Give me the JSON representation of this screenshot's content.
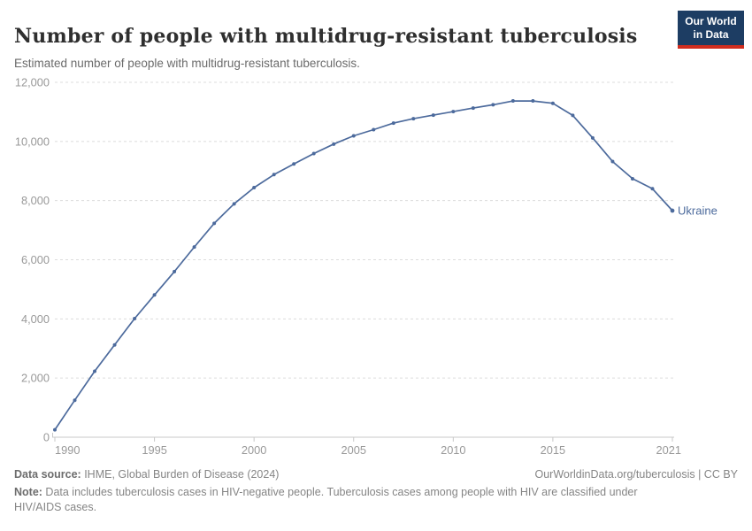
{
  "header": {
    "title": "Number of people with multidrug-resistant tuberculosis",
    "subtitle": "Estimated number of people with multidrug-resistant tuberculosis.",
    "logo_line1": "Our World",
    "logo_line2": "in Data",
    "logo_bg": "#1d3d63",
    "logo_bar": "#d12d1e"
  },
  "chart_data": {
    "type": "line",
    "title": "Number of people with multidrug-resistant tuberculosis",
    "entity": "Ukraine",
    "end_label": "Ukraine",
    "x": [
      1990,
      1991,
      1992,
      1993,
      1994,
      1995,
      1996,
      1997,
      1998,
      1999,
      2000,
      2001,
      2002,
      2003,
      2004,
      2005,
      2006,
      2007,
      2008,
      2009,
      2010,
      2011,
      2012,
      2013,
      2014,
      2015,
      2016,
      2017,
      2018,
      2019,
      2020,
      2021
    ],
    "values": [
      250,
      1250,
      2230,
      3120,
      4010,
      4810,
      5600,
      6430,
      7230,
      7890,
      8440,
      8880,
      9240,
      9590,
      9910,
      10190,
      10400,
      10620,
      10770,
      10890,
      11010,
      11130,
      11240,
      11370,
      11370,
      11290,
      10880,
      10120,
      9320,
      8740,
      8400,
      7660
    ],
    "xlim": [
      1990,
      2021
    ],
    "ylim": [
      0,
      12000
    ],
    "xticks": [
      1990,
      1995,
      2000,
      2005,
      2010,
      2015,
      2021
    ],
    "yticks": [
      0,
      2000,
      4000,
      6000,
      8000,
      10000,
      12000
    ],
    "grid": true,
    "legend_position": "end-of-line-label",
    "line_color": "#4c6a9c",
    "grid_color": "#dcdcdc",
    "axis_color": "#c8c8c8",
    "tick_label_color": "#999999"
  },
  "footer": {
    "datasource_label": "Data source:",
    "datasource_text": " IHME, Global Burden of Disease (2024)",
    "link_text": "OurWorldinData.org/tuberculosis | CC BY",
    "note_label": "Note:",
    "note_text": " Data includes tuberculosis cases in HIV-negative people. Tuberculosis cases among people with HIV are classified under HIV/AIDS cases."
  }
}
